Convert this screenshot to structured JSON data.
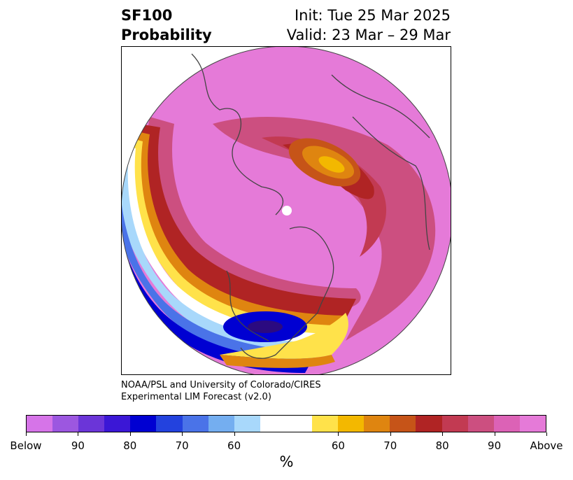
{
  "header": {
    "title_line1": "SF100",
    "title_line2": "Probability",
    "init": "Init: Tue 25 Mar 2025",
    "valid": "Valid: 23 Mar – 29 Mar"
  },
  "credit": {
    "line1": "NOAA/PSL and University of Colorado/CIRES",
    "line2": "Experimental LIM Forecast (v2.0)"
  },
  "colorbar": {
    "colors": [
      "#d674e8",
      "#9c57e0",
      "#6b35d8",
      "#3b17d6",
      "#0000d2",
      "#2342de",
      "#4a73e8",
      "#74aef0",
      "#a8d8fb",
      "#ffffff",
      "#ffffff",
      "#ffe24a",
      "#f3b800",
      "#df8510",
      "#c65418",
      "#b02424",
      "#c23a52",
      "#cc4f80",
      "#dc62b6",
      "#e57ad8"
    ],
    "labels": [
      "Below",
      "90",
      "80",
      "70",
      "60",
      "60",
      "70",
      "80",
      "90",
      "Above"
    ],
    "unit": "%"
  }
}
